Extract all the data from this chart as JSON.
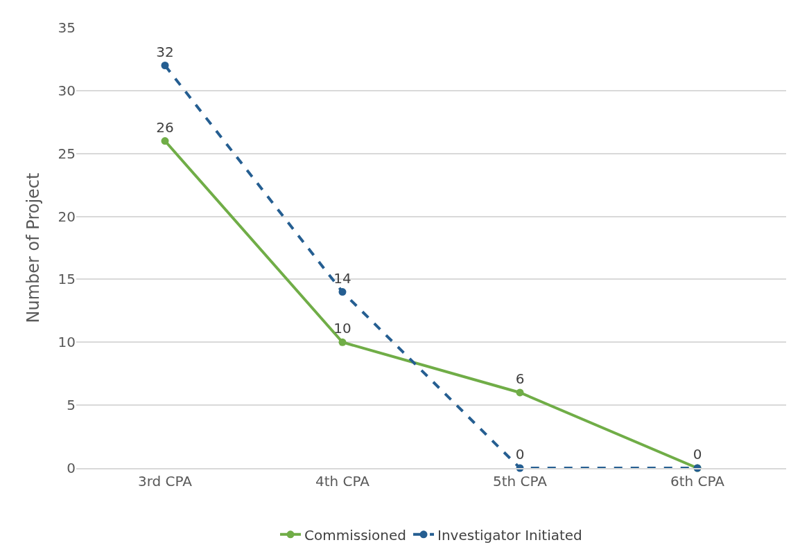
{
  "chart_data": {
    "type": "line",
    "ylabel": "Number of Project",
    "categories": [
      "3rd CPA",
      "4th CPA",
      "5th CPA",
      "6th CPA"
    ],
    "series": [
      {
        "name": "Commissioned",
        "color": "#70ad47",
        "values": [
          26,
          10,
          6,
          0
        ],
        "value_labels": [
          "26",
          "10",
          "6",
          null
        ],
        "line_style": "solid"
      },
      {
        "name": "Investigator Initiated",
        "color": "#255e91",
        "values": [
          32,
          14,
          0,
          0
        ],
        "value_labels": [
          "32",
          "14",
          "0",
          "0"
        ],
        "line_style": "dashed"
      }
    ],
    "ylim": [
      0,
      35
    ],
    "yticks": [
      0,
      5,
      10,
      15,
      20,
      25,
      30,
      35
    ],
    "grid": "y",
    "legend": "bottom",
    "marker": "circle"
  }
}
